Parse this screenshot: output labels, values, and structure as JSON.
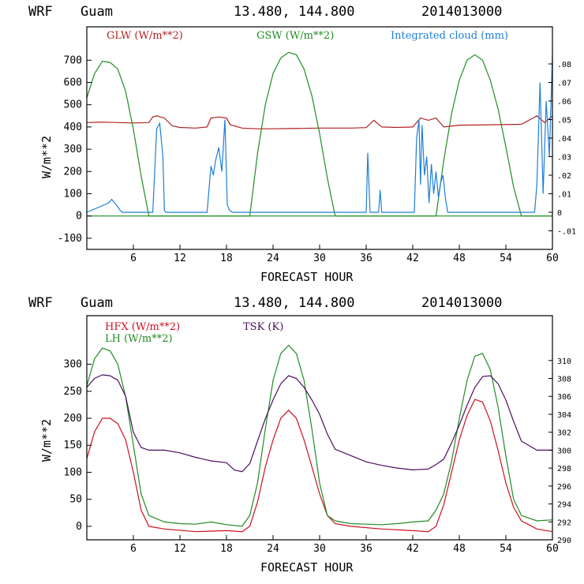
{
  "chart_data": [
    {
      "type": "line",
      "header": {
        "model": "WRF",
        "location": "Guam",
        "coords": "13.480, 144.800",
        "date": "2014013000"
      },
      "xlabel": "FORECAST HOUR",
      "ylabel": "W/m**2",
      "xlim": [
        0,
        60
      ],
      "ylim": [
        -150,
        850
      ],
      "x_ticks": [
        6,
        12,
        18,
        24,
        30,
        36,
        42,
        48,
        54,
        60
      ],
      "y_ticks": [
        -100,
        0,
        100,
        200,
        300,
        400,
        500,
        600,
        700
      ],
      "right_axis": {
        "ylim": [
          -0.02,
          0.1
        ],
        "ticks": [
          -0.01,
          0,
          0.01,
          0.02,
          0.03,
          0.04,
          0.05,
          0.06,
          0.07,
          0.08
        ],
        "tick_labels": [
          "-.01",
          "0",
          ".01",
          ".02",
          ".03",
          ".04",
          ".05",
          ".06",
          ".07",
          ".08"
        ]
      },
      "series": [
        {
          "name": "GLW (W/m**2)",
          "color": "#b22222",
          "x": [
            0,
            2,
            4,
            6,
            8,
            8.5,
            9,
            10,
            11,
            12,
            14,
            15.5,
            16,
            17,
            18,
            18.5,
            20,
            22,
            24,
            26,
            30,
            34,
            36,
            37,
            38,
            40,
            42,
            43,
            44,
            45,
            46,
            48,
            52,
            56,
            58,
            59,
            60
          ],
          "y": [
            420,
            422,
            420,
            418,
            420,
            445,
            450,
            440,
            405,
            398,
            395,
            400,
            440,
            445,
            440,
            410,
            395,
            392,
            392,
            393,
            395,
            395,
            397,
            430,
            400,
            398,
            400,
            440,
            430,
            440,
            400,
            408,
            410,
            412,
            450,
            420,
            450
          ]
        },
        {
          "name": "GSW (W/m**2)",
          "color": "#228b22",
          "x": [
            0,
            1,
            2,
            3,
            4,
            5,
            6,
            7,
            8,
            21,
            22,
            23,
            24,
            25,
            26,
            27,
            28,
            29,
            30,
            31,
            32,
            45,
            46,
            47,
            48,
            49,
            50,
            51,
            52,
            53,
            54,
            55,
            56,
            60
          ],
          "y": [
            530,
            640,
            695,
            690,
            660,
            560,
            390,
            180,
            0,
            0,
            280,
            500,
            640,
            710,
            735,
            725,
            660,
            540,
            370,
            170,
            0,
            0,
            250,
            460,
            610,
            700,
            725,
            700,
            610,
            480,
            310,
            130,
            0,
            0
          ],
          "baseline": {
            "x": [
              0,
              60
            ],
            "y": [
              0,
              0
            ]
          }
        },
        {
          "name": "Integrated cloud (mm)",
          "color": "#1e7fd8",
          "axis": "right",
          "x": [
            0,
            2.8,
            3.2,
            3.8,
            4.3,
            4.6,
            8.5,
            9.0,
            9.4,
            9.8,
            10.0,
            10.2,
            15.5,
            16.0,
            16.3,
            16.6,
            17.0,
            17.4,
            17.8,
            18.1,
            18.4,
            18.8,
            36.0,
            36.2,
            36.5,
            37.6,
            37.8,
            38.0,
            42.2,
            42.5,
            42.8,
            43.0,
            43.2,
            43.5,
            43.8,
            44.1,
            44.4,
            44.7,
            45.0,
            45.3,
            45.6,
            45.9,
            46.2,
            46.5,
            57.7,
            58.0,
            58.4,
            58.8,
            59.2,
            59.6,
            60.0
          ],
          "y": [
            0,
            0.005,
            0.007,
            0.004,
            0.001,
            0,
            0,
            0.045,
            0.048,
            0.03,
            0.001,
            0,
            0,
            0.025,
            0.02,
            0.028,
            0.035,
            0.022,
            0.05,
            0.004,
            0.001,
            0,
            0,
            0.032,
            0,
            0,
            0.012,
            0,
            0,
            0.04,
            0.05,
            0.015,
            0.047,
            0.02,
            0.03,
            0.005,
            0.026,
            0.01,
            0.022,
            0.008,
            0.016,
            0.02,
            0.008,
            0,
            0,
            0.015,
            0.07,
            0.01,
            0.06,
            0.03,
            0.085
          ]
        }
      ]
    },
    {
      "type": "line",
      "header": {
        "model": "WRF",
        "location": "Guam",
        "coords": "13.480, 144.800",
        "date": "2014013000"
      },
      "xlabel": "FORECAST HOUR",
      "ylabel": "W/m**2",
      "xlim": [
        0,
        60
      ],
      "ylim": [
        -25,
        390
      ],
      "x_ticks": [
        6,
        12,
        18,
        24,
        30,
        36,
        42,
        48,
        54,
        60
      ],
      "y_ticks": [
        0,
        50,
        100,
        150,
        200,
        250,
        300
      ],
      "right_axis": {
        "ylim": [
          290,
          315
        ],
        "ticks": [
          290,
          292,
          294,
          296,
          298,
          300,
          302,
          304,
          306,
          308,
          310
        ],
        "tick_labels": [
          "290",
          "292",
          "294",
          "296",
          "298",
          "300",
          "302",
          "304",
          "306",
          "308",
          "310"
        ]
      },
      "series": [
        {
          "name": "HFX (W/m**2)",
          "color": "#cc1122",
          "x": [
            0,
            1,
            2,
            3,
            4,
            5,
            6,
            7,
            8,
            10,
            14,
            18,
            20,
            21,
            22,
            23,
            24,
            25,
            26,
            27,
            28,
            29,
            30,
            31,
            32,
            34,
            38,
            42,
            44,
            45,
            46,
            47,
            48,
            49,
            50,
            51,
            52,
            53,
            54,
            55,
            56,
            58,
            60
          ],
          "y": [
            125,
            175,
            200,
            200,
            190,
            160,
            100,
            30,
            0,
            -5,
            -10,
            -8,
            -10,
            0,
            45,
            110,
            160,
            200,
            215,
            200,
            160,
            110,
            60,
            20,
            5,
            0,
            -5,
            -8,
            -10,
            0,
            40,
            100,
            160,
            205,
            235,
            230,
            195,
            140,
            80,
            35,
            10,
            -5,
            -10
          ]
        },
        {
          "name": "LH (W/m**2)",
          "color": "#228b22",
          "x": [
            0,
            1,
            2,
            3,
            4,
            5,
            6,
            7,
            8,
            10,
            12,
            14,
            16,
            18,
            20,
            21,
            22,
            23,
            24,
            25,
            26,
            27,
            28,
            29,
            30,
            31,
            32,
            34,
            36,
            38,
            40,
            42,
            44,
            45,
            46,
            47,
            48,
            49,
            50,
            51,
            52,
            53,
            54,
            55,
            56,
            58,
            60
          ],
          "y": [
            260,
            310,
            330,
            325,
            300,
            240,
            150,
            60,
            20,
            8,
            5,
            4,
            8,
            3,
            0,
            20,
            80,
            180,
            270,
            320,
            335,
            320,
            270,
            180,
            80,
            20,
            10,
            5,
            4,
            3,
            5,
            8,
            10,
            30,
            60,
            120,
            200,
            270,
            315,
            320,
            290,
            220,
            130,
            50,
            20,
            10,
            12
          ]
        },
        {
          "name": "TSK (K)",
          "color": "#4b0f5f",
          "axis": "right",
          "x": [
            0,
            1,
            2,
            3,
            4,
            5,
            6,
            7,
            8,
            10,
            12,
            14,
            16,
            18,
            19,
            20,
            21,
            22,
            23,
            24,
            25,
            26,
            27,
            28,
            29,
            30,
            31,
            32,
            34,
            36,
            38,
            40,
            42,
            44,
            45,
            46,
            47,
            48,
            49,
            50,
            51,
            52,
            53,
            54,
            55,
            56,
            58,
            60
          ],
          "y": [
            307.0,
            308.0,
            308.4,
            308.3,
            307.8,
            306.0,
            302.0,
            300.3,
            300.0,
            300.0,
            299.7,
            299.2,
            298.8,
            298.6,
            297.8,
            297.6,
            298.5,
            301.0,
            303.5,
            305.6,
            307.4,
            308.3,
            308.0,
            307.0,
            305.6,
            304.0,
            301.8,
            300.1,
            299.4,
            298.7,
            298.3,
            298.0,
            297.8,
            297.9,
            298.4,
            299.0,
            300.8,
            302.8,
            305.0,
            307.0,
            308.2,
            308.3,
            307.4,
            305.6,
            303.2,
            301.0,
            300.0,
            300.0
          ]
        }
      ]
    }
  ]
}
